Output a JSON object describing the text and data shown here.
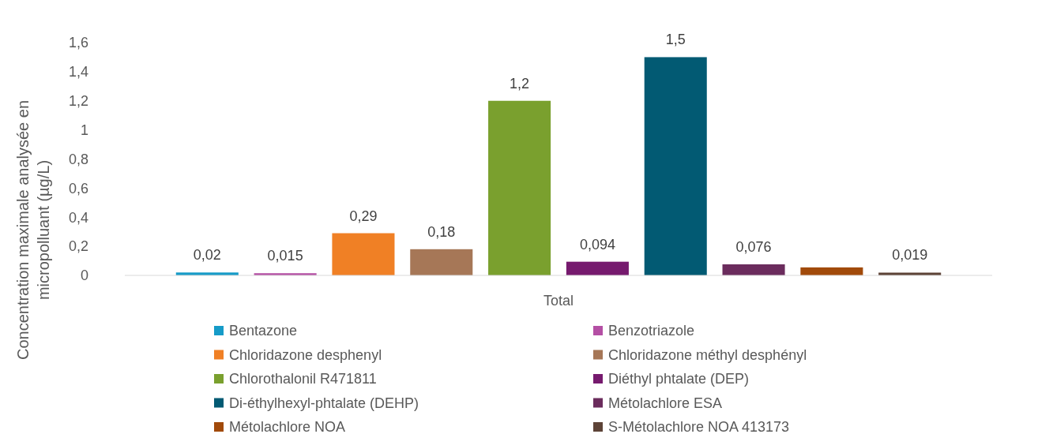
{
  "chart_data": {
    "type": "bar",
    "ylabel": "Concentration maximale analysée en micropolluant (µg/L)",
    "categories": [
      "Total"
    ],
    "ylim": [
      0,
      1.6
    ],
    "yticks": [
      0,
      {
        "value": 0.2,
        "label": "0,2"
      },
      {
        "value": 0.4,
        "label": "0,4"
      },
      {
        "value": 0.6,
        "label": "0,6"
      },
      {
        "value": 0.8,
        "label": "0,8"
      },
      1,
      {
        "value": 1.2,
        "label": "1,2"
      },
      {
        "value": 1.4,
        "label": "1,4"
      },
      {
        "value": 1.6,
        "label": "1,6"
      }
    ],
    "grid": false,
    "legend": "bottom",
    "series": [
      {
        "name": "Bentazone",
        "color": "#169bc8",
        "values": [
          0.02
        ],
        "value_labels": [
          "0,02"
        ]
      },
      {
        "name": "Benzotriazole",
        "color": "#b44fa4",
        "values": [
          0.015
        ],
        "value_labels": [
          "0,015"
        ]
      },
      {
        "name": "Chloridazone desphenyl",
        "color": "#f08025",
        "values": [
          0.29
        ],
        "value_labels": [
          "0,29"
        ]
      },
      {
        "name": "Chloridazone méthyl desphényl",
        "color": "#a67757",
        "values": [
          0.18
        ],
        "value_labels": [
          "0,18"
        ]
      },
      {
        "name": "Chlorothalonil R471811",
        "color": "#7aa02e",
        "values": [
          1.2
        ],
        "value_labels": [
          "1,2"
        ]
      },
      {
        "name": "Diéthyl phtalate (DEP)",
        "color": "#761a6e",
        "values": [
          0.094
        ],
        "value_labels": [
          "0,094"
        ]
      },
      {
        "name": "Di-éthylhexyl-phtalate (DEHP)",
        "color": "#025a73",
        "values": [
          1.5
        ],
        "value_labels": [
          "1,5"
        ]
      },
      {
        "name": "Métolachlore ESA",
        "color": "#6b2c5d",
        "values": [
          0.076
        ],
        "value_labels": [
          "0,076"
        ]
      },
      {
        "name": "Métolachlore NOA",
        "color": "#a14a0a",
        "values": [
          0.055
        ],
        "value_labels": [
          null
        ]
      },
      {
        "name": "S-Métolachlore NOA 413173",
        "color": "#5d4337",
        "values": [
          0.019
        ],
        "value_labels": [
          "0,019"
        ]
      }
    ]
  }
}
